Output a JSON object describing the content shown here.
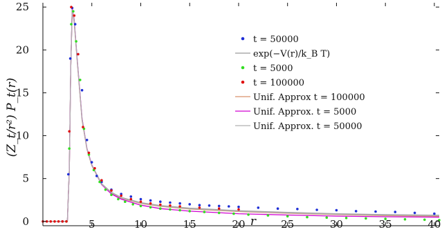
{
  "chart_data": {
    "type": "line",
    "xlabel": "r",
    "ylabel": "(Z_t/r²) P_t(r)",
    "xlim": [
      0,
      40.5
    ],
    "ylim": [
      -0.5,
      25.5
    ],
    "x_ticks": [
      5,
      10,
      15,
      20,
      25,
      30,
      35,
      40
    ],
    "y_ticks": [
      0,
      5,
      10,
      15,
      20,
      25
    ],
    "grid": false,
    "legend_position": "top-right",
    "series": [
      {
        "name": "t = 50000",
        "kind": "markers",
        "color": "#1f2fd6",
        "x": [
          2.0,
          2.6,
          2.8,
          3.0,
          3.3,
          3.6,
          4.0,
          4.5,
          5.0,
          5.5,
          6.0,
          7.0,
          8.0,
          9.0,
          10.0,
          11.0,
          12.0,
          13.0,
          14.0,
          15.0,
          16.0,
          17.0,
          18.0,
          19.0,
          20.0,
          22.0,
          24.0,
          26.0,
          28.0,
          30.0,
          32.0,
          34.0,
          36.0,
          38.0,
          40.0
        ],
        "y": [
          0.0,
          5.5,
          19.0,
          24.9,
          23.0,
          19.5,
          15.3,
          9.5,
          6.9,
          5.3,
          4.6,
          3.7,
          3.2,
          2.9,
          2.6,
          2.45,
          2.3,
          2.2,
          2.1,
          2.0,
          1.9,
          1.85,
          1.8,
          1.75,
          1.7,
          1.6,
          1.5,
          1.45,
          1.35,
          1.3,
          1.2,
          1.15,
          1.1,
          1.0,
          0.9
        ]
      },
      {
        "name": "exp(−V(r)/k_B T)",
        "kind": "line",
        "color": "#9a9a9a",
        "x": [
          0.0,
          2.5,
          2.7,
          2.85,
          3.0,
          3.2,
          3.5,
          4.0,
          4.5,
          5.0,
          6.0,
          7.0,
          8.0,
          10.0,
          12.0,
          15.0,
          20.0,
          25.0,
          30.0,
          35.0,
          40.5
        ],
        "y": [
          0.0,
          0.0,
          6.0,
          18.0,
          24.8,
          23.5,
          19.0,
          12.0,
          8.5,
          6.6,
          4.4,
          3.4,
          2.8,
          2.2,
          1.85,
          1.55,
          1.25,
          1.05,
          0.9,
          0.8,
          0.72
        ]
      },
      {
        "name": "t = 5000",
        "kind": "markers",
        "color": "#33dd22",
        "x": [
          2.4,
          2.7,
          2.9,
          3.1,
          3.4,
          3.8,
          4.2,
          4.7,
          5.2,
          5.8,
          6.4,
          7.0,
          7.7,
          8.4,
          9.2,
          10.0,
          11.0,
          12.0,
          13.0,
          14.0,
          15.0,
          16.5,
          18.0,
          19.5,
          21.0,
          23.0,
          25.0,
          27.0,
          29.0,
          31.0,
          33.0,
          35.0,
          37.0,
          39.0,
          40.5
        ],
        "y": [
          0.0,
          8.5,
          23.0,
          24.5,
          21.0,
          16.5,
          10.8,
          7.8,
          6.0,
          4.6,
          3.7,
          3.1,
          2.6,
          2.3,
          2.0,
          1.8,
          1.65,
          1.5,
          1.4,
          1.3,
          1.2,
          1.1,
          1.0,
          0.9,
          0.8,
          0.7,
          0.6,
          0.5,
          0.45,
          0.4,
          0.35,
          0.3,
          0.25,
          0.2,
          0.15
        ]
      },
      {
        "name": "t = 100000",
        "kind": "markers",
        "color": "#e01010",
        "x": [
          0.0,
          0.4,
          0.8,
          1.2,
          1.6,
          2.0,
          2.4,
          2.7,
          2.9,
          3.2,
          3.6,
          4.1,
          4.7,
          5.3,
          6.0,
          7.0,
          8.0,
          9.0,
          10.0,
          11.0,
          12.0,
          13.0,
          14.0,
          16.0,
          18.0,
          20.0
        ],
        "y": [
          0.0,
          0.0,
          0.0,
          0.0,
          0.0,
          0.0,
          0.0,
          10.5,
          25.0,
          24.0,
          19.5,
          11.0,
          8.0,
          6.2,
          4.8,
          3.6,
          3.0,
          2.6,
          2.3,
          2.1,
          1.95,
          1.85,
          1.75,
          1.6,
          1.5,
          1.4
        ]
      },
      {
        "name": "Unif. Approx t = 100000",
        "kind": "line",
        "color": "#d9906a",
        "x": [
          2.5,
          2.7,
          2.85,
          3.0,
          3.2,
          3.5,
          4.0,
          4.5,
          5.0,
          6.0,
          7.0,
          8.0,
          10.0,
          12.0,
          15.0,
          20.0,
          25.0,
          30.0,
          35.0,
          40.5
        ],
        "y": [
          0.0,
          6.0,
          18.0,
          24.6,
          23.2,
          18.8,
          11.8,
          8.4,
          6.5,
          4.3,
          3.3,
          2.7,
          2.1,
          1.75,
          1.45,
          1.15,
          0.95,
          0.8,
          0.68,
          0.6
        ]
      },
      {
        "name": "Unif. Approx. t = 5000",
        "kind": "line",
        "color": "#d000d0",
        "x": [
          2.5,
          2.7,
          2.85,
          3.0,
          3.2,
          3.5,
          4.0,
          4.5,
          5.0,
          6.0,
          7.0,
          8.0,
          10.0,
          12.0,
          15.0,
          20.0,
          25.0,
          30.0,
          35.0,
          40.5
        ],
        "y": [
          0.0,
          6.0,
          18.0,
          24.9,
          23.4,
          19.0,
          12.0,
          8.5,
          6.6,
          4.3,
          3.2,
          2.6,
          1.9,
          1.5,
          1.2,
          0.9,
          0.75,
          0.62,
          0.55,
          0.5
        ]
      },
      {
        "name": "Unif. Approx. t = 50000",
        "kind": "line",
        "color": "#b0b0b0",
        "x": [
          2.5,
          2.7,
          2.85,
          3.0,
          3.2,
          3.5,
          4.0,
          4.5,
          5.0,
          6.0,
          7.0,
          8.0,
          10.0,
          12.0,
          15.0,
          20.0,
          25.0,
          30.0,
          35.0,
          40.5
        ],
        "y": [
          0.0,
          6.0,
          18.0,
          24.7,
          23.3,
          18.9,
          11.9,
          8.45,
          6.55,
          4.35,
          3.35,
          2.75,
          2.15,
          1.8,
          1.5,
          1.2,
          1.0,
          0.85,
          0.75,
          0.68
        ]
      }
    ]
  }
}
